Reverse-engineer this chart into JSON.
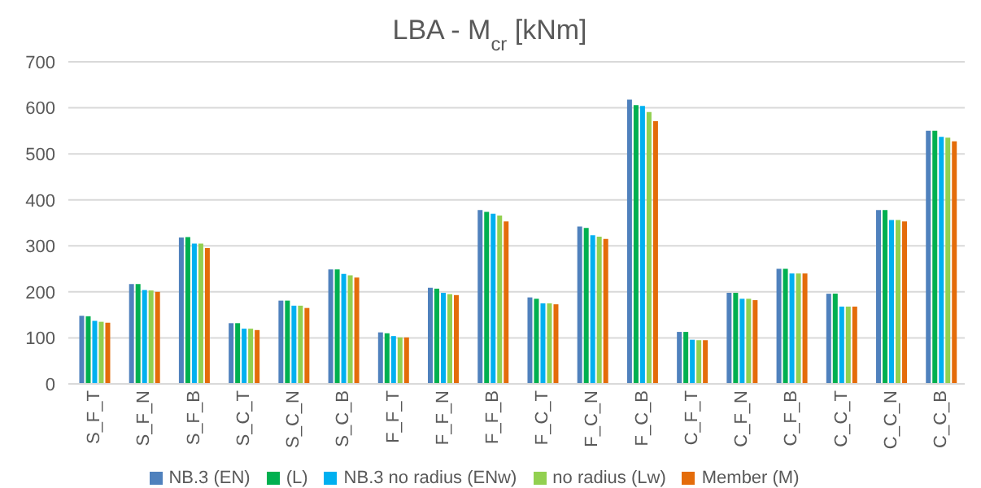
{
  "chart_data": {
    "type": "bar",
    "title": "LBA - M$_{cr}$ [kNm]",
    "categories": [
      "S_F_T",
      "S_F_N",
      "S_F_B",
      "S_C_T",
      "S_C_N",
      "S_C_B",
      "F_F_T",
      "F_F_N",
      "F_F_B",
      "F_C_T",
      "F_C_N",
      "F_C_B",
      "C_F_T",
      "C_F_N",
      "C_F_B",
      "C_C_T",
      "C_C_N",
      "C_C_B"
    ],
    "series": [
      {
        "name": "NB.3 (EN)",
        "color": "#4f81bd",
        "values": [
          148,
          217,
          318,
          132,
          181,
          249,
          112,
          209,
          378,
          188,
          342,
          618,
          113,
          198,
          250,
          196,
          378,
          550
        ]
      },
      {
        "name": "(L)",
        "color": "#00b050",
        "values": [
          147,
          217,
          319,
          132,
          181,
          249,
          110,
          207,
          374,
          185,
          339,
          606,
          113,
          198,
          250,
          196,
          378,
          550
        ]
      },
      {
        "name": "NB.3 no radius (ENw)",
        "color": "#00b0f0",
        "values": [
          137,
          204,
          305,
          120,
          170,
          239,
          104,
          198,
          370,
          175,
          323,
          604,
          96,
          185,
          240,
          168,
          356,
          537
        ]
      },
      {
        "name": "no radius (Lw)",
        "color": "#92d050",
        "values": [
          135,
          203,
          305,
          120,
          170,
          236,
          101,
          195,
          366,
          175,
          320,
          591,
          95,
          185,
          240,
          168,
          356,
          535
        ]
      },
      {
        "name": "Member (M)",
        "color": "#e46c0a",
        "values": [
          133,
          200,
          295,
          117,
          165,
          231,
          101,
          193,
          353,
          173,
          315,
          571,
          95,
          182,
          240,
          168,
          353,
          527
        ]
      }
    ],
    "ylim": [
      0,
      700
    ],
    "yticks": [
      0,
      100,
      200,
      300,
      400,
      500,
      600,
      700
    ],
    "grid": "y",
    "legend": "bottom"
  }
}
